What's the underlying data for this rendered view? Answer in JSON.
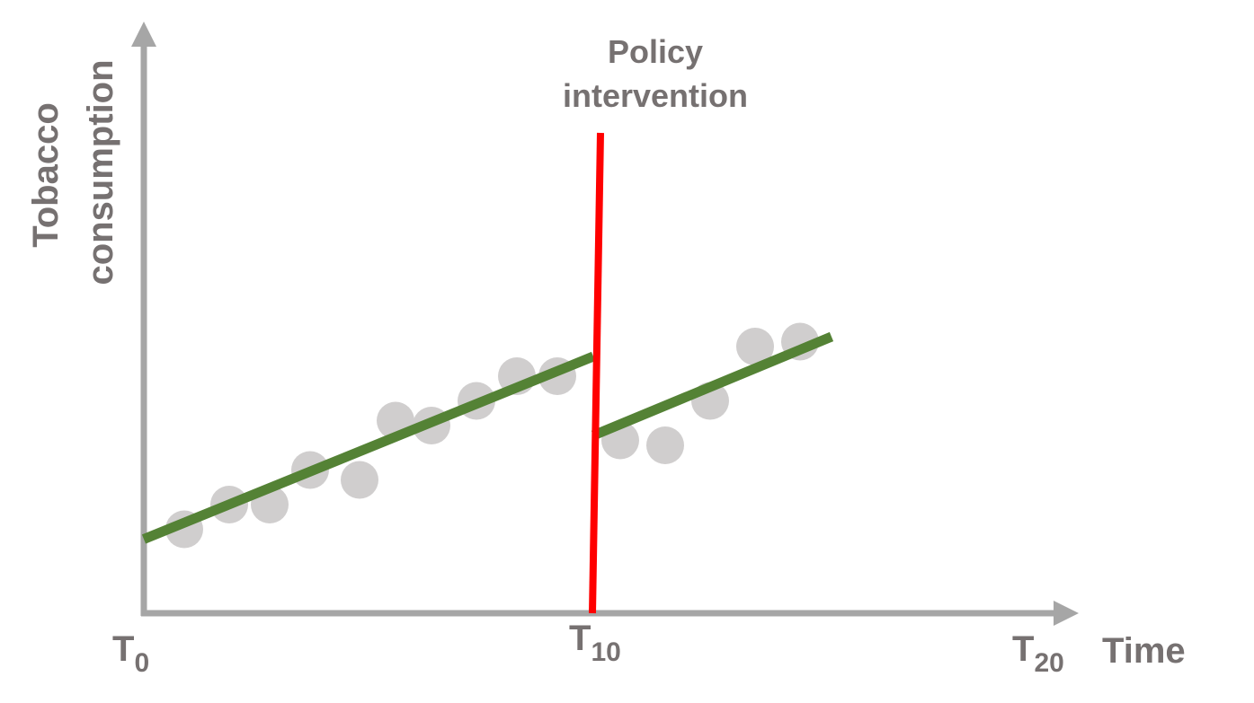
{
  "chart_data": {
    "type": "scatter",
    "ylabel_lines": [
      "Tobacco",
      "consumption"
    ],
    "xlabel": "Time",
    "x_ticks": [
      {
        "base": "T",
        "sub": "0",
        "x": 0
      },
      {
        "base": "T",
        "sub": "10",
        "x": 10
      },
      {
        "base": "T",
        "sub": "20",
        "x": 20
      }
    ],
    "xlim": [
      0,
      20
    ],
    "ylim": [
      0,
      10
    ],
    "points": [
      {
        "x": 0.9,
        "y": 1.7
      },
      {
        "x": 1.9,
        "y": 2.2
      },
      {
        "x": 2.8,
        "y": 2.2
      },
      {
        "x": 3.7,
        "y": 2.9
      },
      {
        "x": 4.8,
        "y": 2.7
      },
      {
        "x": 5.6,
        "y": 3.9
      },
      {
        "x": 6.4,
        "y": 3.8
      },
      {
        "x": 7.4,
        "y": 4.3
      },
      {
        "x": 8.3,
        "y": 4.8
      },
      {
        "x": 9.2,
        "y": 4.8
      },
      {
        "x": 10.6,
        "y": 3.5
      },
      {
        "x": 11.6,
        "y": 3.4
      },
      {
        "x": 12.6,
        "y": 4.3
      },
      {
        "x": 13.6,
        "y": 5.4
      },
      {
        "x": 14.6,
        "y": 5.5
      }
    ],
    "trend_lines": [
      {
        "x1": 0,
        "y1": 1.5,
        "x2": 10,
        "y2": 5.2
      },
      {
        "x1": 10,
        "y1": 3.6,
        "x2": 15.3,
        "y2": 5.6
      }
    ],
    "intervention": {
      "x": 10,
      "label_lines": [
        "Policy",
        "intervention"
      ]
    },
    "colors": {
      "axis": "#a6a6a6",
      "text": "#767171",
      "points": "#d0cece",
      "trend": "#548235",
      "intervention": "#ff0000"
    }
  }
}
